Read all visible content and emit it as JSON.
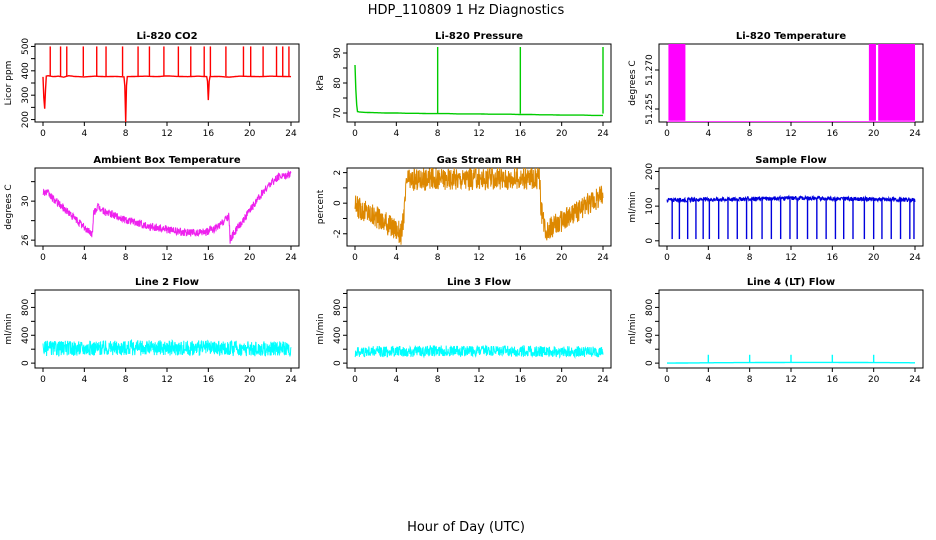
{
  "title": "HDP_110809  1 Hz Diagnostics",
  "xlabel": "Hour of Day (UTC)",
  "x_ticks": [
    0,
    4,
    8,
    12,
    16,
    20,
    24
  ],
  "chart_data": [
    {
      "type": "line",
      "title": "Li-820 CO2",
      "xlabel": "",
      "ylabel": "Licor ppm",
      "xlim": [
        0,
        24
      ],
      "ylim": [
        190,
        510
      ],
      "yticks": [
        200,
        250,
        300,
        350,
        400,
        450,
        500
      ],
      "ytick_labels": [
        "200",
        "",
        "300",
        "",
        "400",
        "",
        "500"
      ],
      "color": "#ff0000",
      "series": [
        {
          "x": [
            0,
            0.1,
            0.15,
            0.3,
            0.5,
            1,
            1.5,
            2,
            2.5,
            3,
            4,
            5,
            6,
            7,
            7.9,
            8,
            8.1,
            9,
            10,
            11,
            12,
            13,
            14,
            15,
            15.9,
            16,
            16.1,
            17,
            18,
            19,
            20,
            21,
            22,
            23,
            24
          ],
          "y": [
            375,
            270,
            235,
            378,
            380,
            376,
            378,
            374,
            380,
            377,
            375,
            378,
            376,
            377,
            375,
            190,
            376,
            377,
            378,
            376,
            379,
            377,
            376,
            378,
            376,
            280,
            376,
            377,
            374,
            378,
            377,
            376,
            378,
            377,
            376
          ]
        }
      ],
      "spikes": {
        "x": [
          0.7,
          1.7,
          2.3,
          3.9,
          5.2,
          6.1,
          7.7,
          9.2,
          10.3,
          11.7,
          13.1,
          14.3,
          15.6,
          16.2,
          17.7,
          19.4,
          20.1,
          21.3,
          22.6,
          23.2,
          23.8
        ],
        "y": 500,
        "base": 378
      }
    },
    {
      "type": "line",
      "title": "Li-820 Pressure",
      "xlabel": "",
      "ylabel": "kPa",
      "xlim": [
        0,
        24
      ],
      "ylim": [
        67,
        93
      ],
      "yticks": [
        70,
        75,
        80,
        85,
        90
      ],
      "ytick_labels": [
        "70",
        "",
        "80",
        "",
        "90"
      ],
      "color": "#00cc00",
      "series": [
        {
          "x": [
            0,
            0.1,
            0.2,
            0.5,
            1,
            2,
            3,
            4,
            5,
            6,
            7,
            8,
            9,
            10,
            11,
            12,
            13,
            14,
            15,
            16,
            17,
            18,
            19,
            20,
            21,
            22,
            23,
            24
          ],
          "y": [
            86,
            76,
            70.5,
            70.3,
            70.2,
            70.1,
            70,
            70,
            69.9,
            69.9,
            69.8,
            69.8,
            69.8,
            69.7,
            69.7,
            69.7,
            69.6,
            69.6,
            69.6,
            69.5,
            69.5,
            69.4,
            69.4,
            69.3,
            69.3,
            69.3,
            69.2,
            69.2
          ]
        }
      ],
      "spikes": {
        "x": [
          8,
          16,
          24
        ],
        "y": 92,
        "base": 69.8
      }
    },
    {
      "type": "line",
      "title": "Li-820 Temperature",
      "xlabel": "",
      "ylabel": "degrees C",
      "xlim": [
        0,
        24
      ],
      "ylim": [
        51.25,
        51.28
      ],
      "yticks": [
        51.255,
        51.27
      ],
      "ytick_labels": [
        "51.255",
        "51.270"
      ],
      "color": "#ff00ff",
      "series": [
        {
          "x": [
            0,
            2,
            5,
            8,
            12,
            16,
            19.5,
            20,
            24
          ],
          "y": [
            51.25,
            51.25,
            51.25,
            51.25,
            51.25,
            51.25,
            51.25,
            51.25,
            51.25
          ]
        }
      ],
      "bands": [
        [
          0.2,
          1.8
        ],
        [
          19.6,
          20.2
        ],
        [
          20.5,
          24
        ]
      ]
    },
    {
      "type": "line",
      "title": "Ambient Box Temperature",
      "xlabel": "",
      "ylabel": "degrees C",
      "xlim": [
        0,
        24
      ],
      "ylim": [
        25.4,
        33.4
      ],
      "yticks": [
        26,
        28,
        30,
        32
      ],
      "ytick_labels": [
        "26",
        "",
        "30",
        ""
      ],
      "color": "#ee22ee",
      "series": [
        {
          "x": [
            0,
            0.5,
            1,
            2,
            3,
            4,
            4.8,
            4.9,
            5.3,
            6,
            7,
            8,
            9,
            10,
            11,
            12,
            13,
            14,
            15,
            16,
            17,
            18,
            18.1,
            18.5,
            19,
            20,
            21,
            22,
            23,
            24
          ],
          "y": [
            31,
            30.8,
            30.2,
            29.3,
            28.3,
            27.3,
            26.6,
            28.8,
            29.4,
            28.9,
            28.5,
            28.1,
            27.8,
            27.5,
            27.3,
            27.1,
            26.9,
            26.8,
            26.7,
            26.9,
            27.4,
            28.5,
            26,
            26.8,
            27.5,
            29,
            30.5,
            31.8,
            32.6,
            32.8
          ]
        }
      ],
      "noise": 0.4
    },
    {
      "type": "line",
      "title": "Gas Stream RH",
      "xlabel": "",
      "ylabel": "percent",
      "xlim": [
        0,
        24
      ],
      "ylim": [
        -2.8,
        2.3
      ],
      "yticks": [
        -2,
        -1,
        0,
        1,
        2
      ],
      "ytick_labels": [
        "-2",
        "",
        "0",
        "",
        "2"
      ],
      "color": "#dd8800",
      "series": [
        {
          "x": [
            0,
            1,
            2,
            3,
            4,
            4.5,
            4.8,
            5,
            6,
            8,
            10,
            12,
            14,
            16,
            17,
            17.9,
            18,
            18.5,
            19,
            20,
            21,
            22,
            23,
            24
          ],
          "y": [
            -0.2,
            -0.5,
            -0.9,
            -1.3,
            -1.7,
            -2,
            -0.3,
            1.5,
            1.55,
            1.6,
            1.6,
            1.6,
            1.6,
            1.6,
            1.65,
            1.6,
            -0.5,
            -1.7,
            -1.6,
            -1.2,
            -0.8,
            -0.3,
            0.2,
            0.5
          ]
        }
      ],
      "noise": 0.75
    },
    {
      "type": "line",
      "title": "Sample Flow",
      "xlabel": "",
      "ylabel": "ml/min",
      "xlim": [
        0,
        24
      ],
      "ylim": [
        -15,
        210
      ],
      "yticks": [
        0,
        50,
        100,
        150,
        200
      ],
      "ytick_labels": [
        "0",
        "",
        "100",
        "",
        "200"
      ],
      "color": "#0000dd",
      "series": [
        {
          "x": [
            0,
            2,
            4,
            6,
            8,
            10,
            12,
            14,
            16,
            18,
            20,
            22,
            24
          ],
          "y": [
            118,
            118,
            119,
            120,
            121,
            122,
            123,
            123,
            122,
            121,
            120,
            119,
            118
          ]
        }
      ],
      "spikes": {
        "x": [
          0.5,
          1.2,
          2,
          2.8,
          3.5,
          4.1,
          5,
          5.9,
          6.8,
          7.7,
          8.2,
          9.2,
          10.1,
          11,
          11.9,
          12.6,
          13.6,
          14.5,
          15.4,
          16.3,
          17.1,
          18,
          19.1,
          20,
          20.8,
          21.7,
          22.6,
          23.5,
          23.9
        ],
        "y": 5,
        "base": 120
      },
      "noise": 6
    },
    {
      "type": "line",
      "title": "Line 2 Flow",
      "xlabel": "",
      "ylabel": "ml/min",
      "xlim": [
        0,
        24
      ],
      "ylim": [
        -70,
        1050
      ],
      "yticks": [
        0,
        200,
        400,
        600,
        800,
        1000
      ],
      "ytick_labels": [
        "0",
        "",
        "400",
        "",
        "800",
        ""
      ],
      "color": "#00ffff",
      "series": [
        {
          "x": [
            0,
            4,
            8,
            12,
            16,
            20,
            24
          ],
          "y": [
            210,
            215,
            220,
            220,
            215,
            210,
            200
          ]
        }
      ],
      "noise": 110
    },
    {
      "type": "line",
      "title": "Line 3 Flow",
      "xlabel": "",
      "ylabel": "ml/min",
      "xlim": [
        0,
        24
      ],
      "ylim": [
        -70,
        1050
      ],
      "yticks": [
        0,
        200,
        400,
        600,
        800,
        1000
      ],
      "ytick_labels": [
        "0",
        "",
        "400",
        "",
        "800",
        ""
      ],
      "color": "#00ffff",
      "series": [
        {
          "x": [
            0,
            4,
            8,
            12,
            16,
            20,
            24
          ],
          "y": [
            160,
            170,
            175,
            175,
            170,
            165,
            160
          ]
        }
      ],
      "noise": 80
    },
    {
      "type": "line",
      "title": "Line 4 (LT) Flow",
      "xlabel": "",
      "ylabel": "ml/min",
      "xlim": [
        0,
        24
      ],
      "ylim": [
        -70,
        1050
      ],
      "yticks": [
        0,
        200,
        400,
        600,
        800,
        1000
      ],
      "ytick_labels": [
        "0",
        "",
        "400",
        "",
        "800",
        ""
      ],
      "color": "#00ffff",
      "series": [
        {
          "x": [
            0,
            4,
            8,
            12,
            16,
            20,
            24
          ],
          "y": [
            0,
            5,
            8,
            10,
            10,
            8,
            5
          ]
        }
      ],
      "spikes": {
        "x": [
          4,
          8,
          12,
          16,
          20
        ],
        "y": 120,
        "base": 5
      }
    }
  ]
}
